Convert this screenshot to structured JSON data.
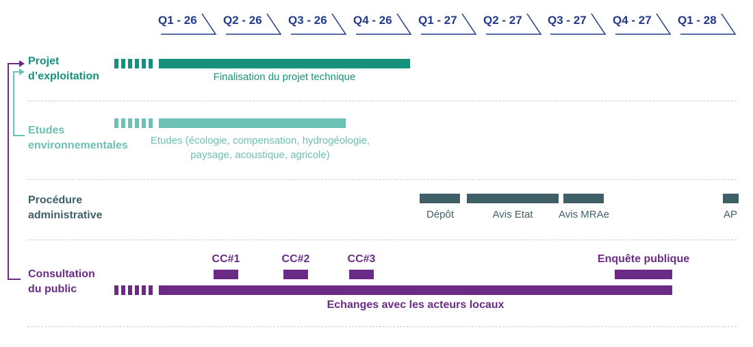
{
  "colors": {
    "header": "#1f3a8a",
    "exploitation": "#16917b",
    "environnement": "#6cc0b4",
    "administratif": "#3e5f66",
    "consultation": "#6b2a86",
    "separator": "#c9ccd1"
  },
  "quarters": [
    "Q1 - 26",
    "Q2 - 26",
    "Q3 - 26",
    "Q4 - 26",
    "Q1 - 27",
    "Q2 - 27",
    "Q3 - 27",
    "Q4 - 27",
    "Q1 - 28"
  ],
  "rows": {
    "exploitation": {
      "label_line1": "Projet",
      "label_line2": "d’exploitation",
      "caption": "Finalisation du projet technique"
    },
    "environnement": {
      "label_line1": "Etudes",
      "label_line2": "environnementales",
      "caption_line1": "Etudes (écologie, compensation, hydrogéologie,",
      "caption_line2": "paysage, acoustique, agricole)"
    },
    "administratif": {
      "label_line1": "Procédure",
      "label_line2": "administrative",
      "items": [
        "Dépôt",
        "Avis Etat",
        "Avis MRAe",
        "AP"
      ]
    },
    "consultation": {
      "label_line1": "Consultation",
      "label_line2": "du public",
      "milestones": [
        "CC#1",
        "CC#2",
        "CC#3"
      ],
      "enquete": "Enquête publique",
      "caption": "Echanges avec les acteurs locaux"
    }
  }
}
